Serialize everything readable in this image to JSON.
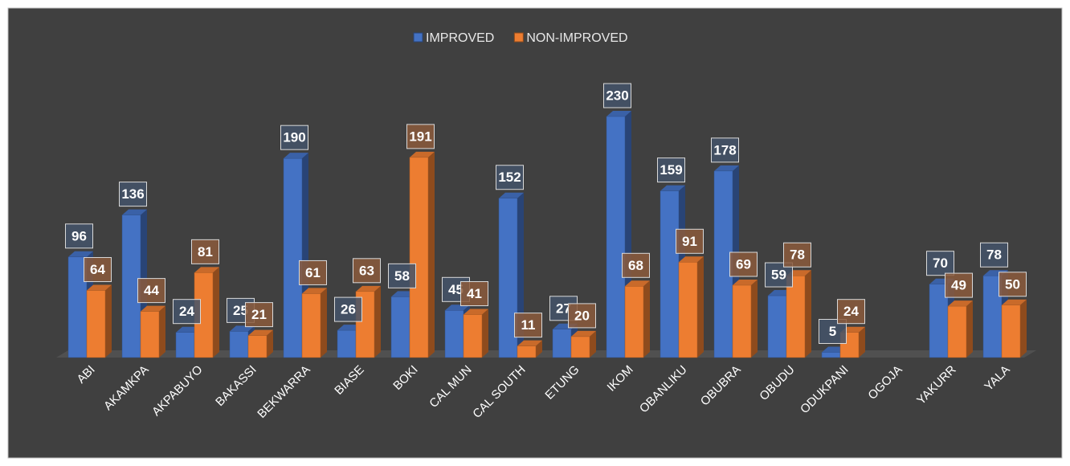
{
  "chart_data": {
    "type": "bar3d",
    "categories": [
      "ABI",
      "AKAMKPA",
      "AKPABUYO",
      "BAKASSI",
      "BEKWARRA",
      "BIASE",
      "BOKI",
      "CAL MUN",
      "CAL SOUTH",
      "ETUNG",
      "IKOM",
      "OBANLIKU",
      "OBUBRA",
      "OBUDU",
      "ODUKPANI",
      "OGOJA",
      "YAKURR",
      "YALA"
    ],
    "series": [
      {
        "name": "IMPROVED",
        "color": "#4472c4",
        "values": [
          96,
          136,
          24,
          25,
          190,
          26,
          58,
          45,
          152,
          27,
          230,
          159,
          178,
          59,
          5,
          null,
          70,
          78
        ]
      },
      {
        "name": "NON-IMPROVED",
        "color": "#ed7d31",
        "values": [
          64,
          44,
          81,
          21,
          61,
          63,
          191,
          41,
          11,
          20,
          68,
          91,
          69,
          78,
          24,
          null,
          49,
          50
        ]
      }
    ]
  }
}
